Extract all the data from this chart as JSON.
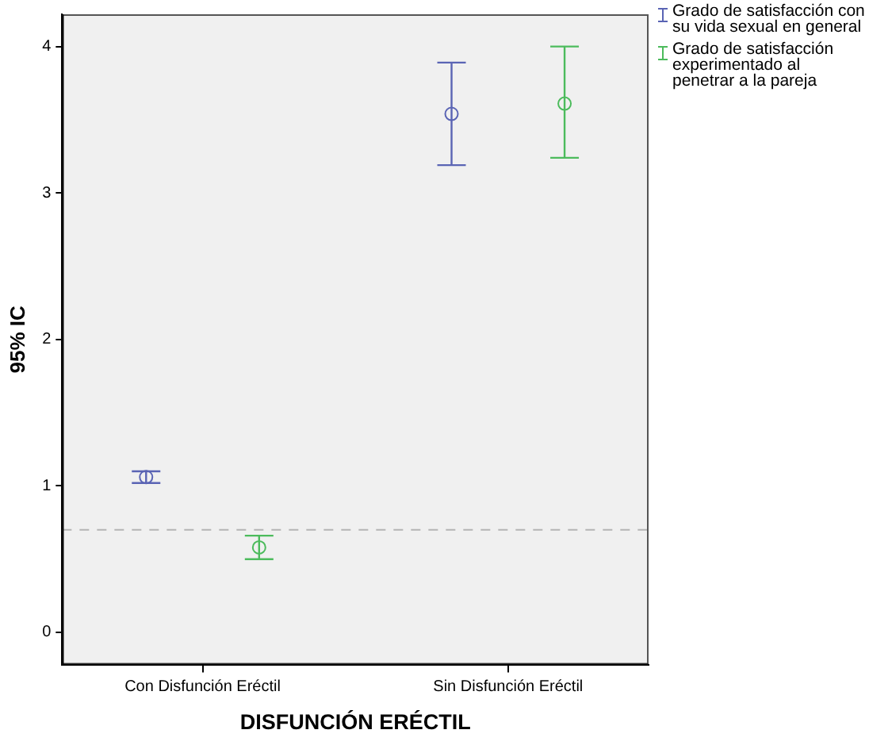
{
  "chart_data": {
    "type": "scatter",
    "xlabel": "DISFUNCIÓN ERÉCTIL",
    "ylabel": "95% IC",
    "categories": [
      "Con Disfunción Eréctil",
      "Sin Disfunción Eréctil"
    ],
    "series": [
      {
        "name": "Grado de satisfacción con su vida sexual en general",
        "color": "#5a64b4",
        "values": [
          1.06,
          3.54
        ],
        "errors": [
          [
            1.02,
            1.1
          ],
          [
            3.19,
            3.89
          ]
        ]
      },
      {
        "name": "Grado de satisfacción experimentado al penetrar a la pareja",
        "color": "#4cbb5c",
        "values": [
          0.58,
          3.61
        ],
        "errors": [
          [
            0.5,
            0.66
          ],
          [
            3.24,
            4.0
          ]
        ]
      }
    ],
    "ylim": [
      -0.22,
      4.22
    ],
    "yticks": [
      0,
      1,
      2,
      3,
      4
    ],
    "ref_lines": [
      {
        "axis": "y",
        "value": 0.7,
        "color": "#b4b4b4",
        "line_style": "dashed"
      }
    ],
    "grid": false,
    "legend": "right",
    "marker": "circle"
  }
}
